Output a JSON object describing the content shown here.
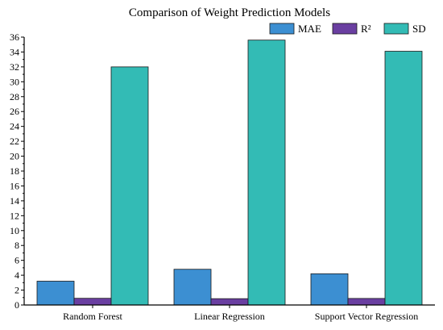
{
  "chart_data": {
    "type": "bar",
    "title": "Comparison of Weight Prediction Models",
    "xlabel": "",
    "ylabel": "",
    "categories": [
      "Random Forest",
      "Linear Regression",
      "Support Vector Regression"
    ],
    "series": [
      {
        "name": "MAE",
        "values": [
          3.2,
          4.8,
          4.2
        ],
        "color": "#3c8fd2"
      },
      {
        "name": "R²",
        "values": [
          0.9,
          0.85,
          0.88
        ],
        "color": "#6a3fa1"
      },
      {
        "name": "SD",
        "values": [
          32.0,
          35.6,
          34.1
        ],
        "color": "#33bbb5"
      }
    ],
    "ylim": [
      0,
      36
    ],
    "yticks": [
      "0",
      "2",
      "4",
      "6",
      "8",
      "10",
      "12",
      "14",
      "16",
      "18",
      "20",
      "22",
      "24",
      "26",
      "28",
      "30",
      "32",
      "34",
      "36"
    ],
    "legend_position": "top-right",
    "grid": false
  }
}
